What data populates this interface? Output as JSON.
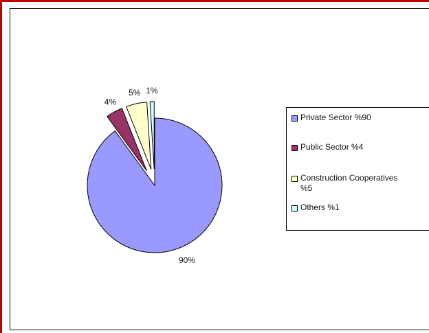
{
  "chart_data": {
    "type": "pie",
    "slices": [
      {
        "label": "Private Sector %90",
        "value": 90,
        "data_label": "90%",
        "color": "#9999ff",
        "exploded": false
      },
      {
        "label": "Public Sector %4",
        "value": 4,
        "data_label": "4%",
        "color": "#993366",
        "exploded": true
      },
      {
        "label": "Construction Cooperatives\n%5",
        "value": 5,
        "data_label": "5%",
        "color": "#ffffcc",
        "exploded": true
      },
      {
        "label": "Others %1",
        "value": 1,
        "data_label": "1%",
        "color": "#ccffff",
        "exploded": true
      }
    ],
    "legend_position": "right"
  },
  "frame_color": "#c00000"
}
